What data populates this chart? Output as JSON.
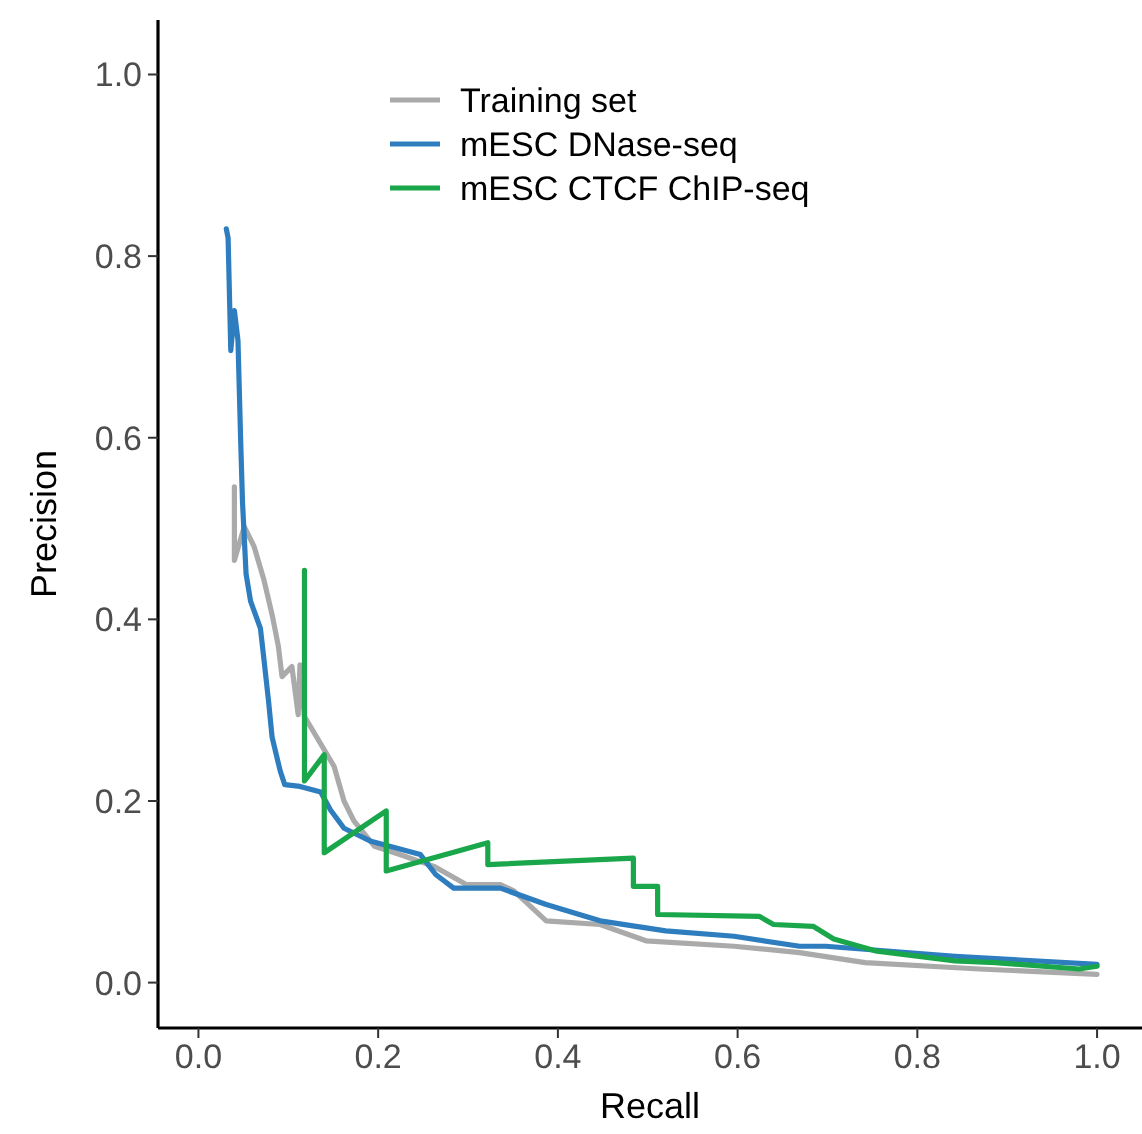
{
  "chart_data": {
    "type": "line",
    "xlabel": "Recall",
    "ylabel": "Precision",
    "xlim": [
      -0.045,
      1.05
    ],
    "ylim": [
      -0.05,
      1.06
    ],
    "xticks": [
      {
        "value": 0,
        "label": "0.0"
      },
      {
        "value": 0.2,
        "label": "0.2"
      },
      {
        "value": 0.4,
        "label": "0.4"
      },
      {
        "value": 0.6,
        "label": "0.6"
      },
      {
        "value": 0.8,
        "label": "0.8"
      },
      {
        "value": 1,
        "label": "1.0"
      }
    ],
    "yticks": [
      {
        "value": 0,
        "label": "0.0"
      },
      {
        "value": 0.2,
        "label": "0.2"
      },
      {
        "value": 0.4,
        "label": "0.4"
      },
      {
        "value": 0.6,
        "label": "0.6"
      },
      {
        "value": 0.8,
        "label": "0.8"
      },
      {
        "value": 1,
        "label": "1.0"
      }
    ],
    "grid": false,
    "legend": "top",
    "line_style": "solid",
    "series": [
      {
        "name": "Training set",
        "color": "#aaaaaa",
        "x": [
          0.04,
          0.04,
          0.051,
          0.062,
          0.073,
          0.082,
          0.089,
          0.093,
          0.104,
          0.111,
          0.113,
          0.118,
          0.151,
          0.162,
          0.173,
          0.196,
          0.224,
          0.262,
          0.298,
          0.336,
          0.351,
          0.387,
          0.447,
          0.498,
          0.596,
          0.669,
          0.742,
          0.869,
          1.0
        ],
        "values": [
          0.546,
          0.465,
          0.502,
          0.48,
          0.443,
          0.405,
          0.37,
          0.337,
          0.348,
          0.295,
          0.35,
          0.293,
          0.238,
          0.2,
          0.178,
          0.15,
          0.141,
          0.128,
          0.108,
          0.108,
          0.101,
          0.068,
          0.064,
          0.046,
          0.04,
          0.033,
          0.022,
          0.015,
          0.009
        ]
      },
      {
        "name": "mESC DNase-seq",
        "color": "#2e7ebf",
        "x": [
          0.031,
          0.033,
          0.036,
          0.04,
          0.044,
          0.047,
          0.049,
          0.053,
          0.058,
          0.069,
          0.073,
          0.078,
          0.082,
          0.091,
          0.096,
          0.113,
          0.136,
          0.147,
          0.162,
          0.191,
          0.247,
          0.264,
          0.284,
          0.336,
          0.387,
          0.447,
          0.52,
          0.596,
          0.669,
          0.698,
          0.842,
          1.0
        ],
        "values": [
          0.83,
          0.82,
          0.696,
          0.74,
          0.707,
          0.597,
          0.53,
          0.45,
          0.42,
          0.39,
          0.355,
          0.31,
          0.27,
          0.233,
          0.218,
          0.216,
          0.21,
          0.19,
          0.17,
          0.156,
          0.141,
          0.119,
          0.104,
          0.104,
          0.086,
          0.068,
          0.057,
          0.051,
          0.04,
          0.04,
          0.029,
          0.02
        ]
      },
      {
        "name": "mESC CTCF ChIP-seq",
        "color": "#1aa64a",
        "x": [
          0.118,
          0.118,
          0.14,
          0.14,
          0.209,
          0.209,
          0.322,
          0.322,
          0.484,
          0.484,
          0.511,
          0.511,
          0.624,
          0.64,
          0.684,
          0.707,
          0.753,
          0.842,
          0.887,
          0.98,
          1.0
        ],
        "values": [
          0.454,
          0.222,
          0.251,
          0.143,
          0.189,
          0.123,
          0.154,
          0.13,
          0.137,
          0.106,
          0.106,
          0.075,
          0.073,
          0.064,
          0.062,
          0.048,
          0.035,
          0.024,
          0.022,
          0.015,
          0.018
        ]
      }
    ]
  }
}
